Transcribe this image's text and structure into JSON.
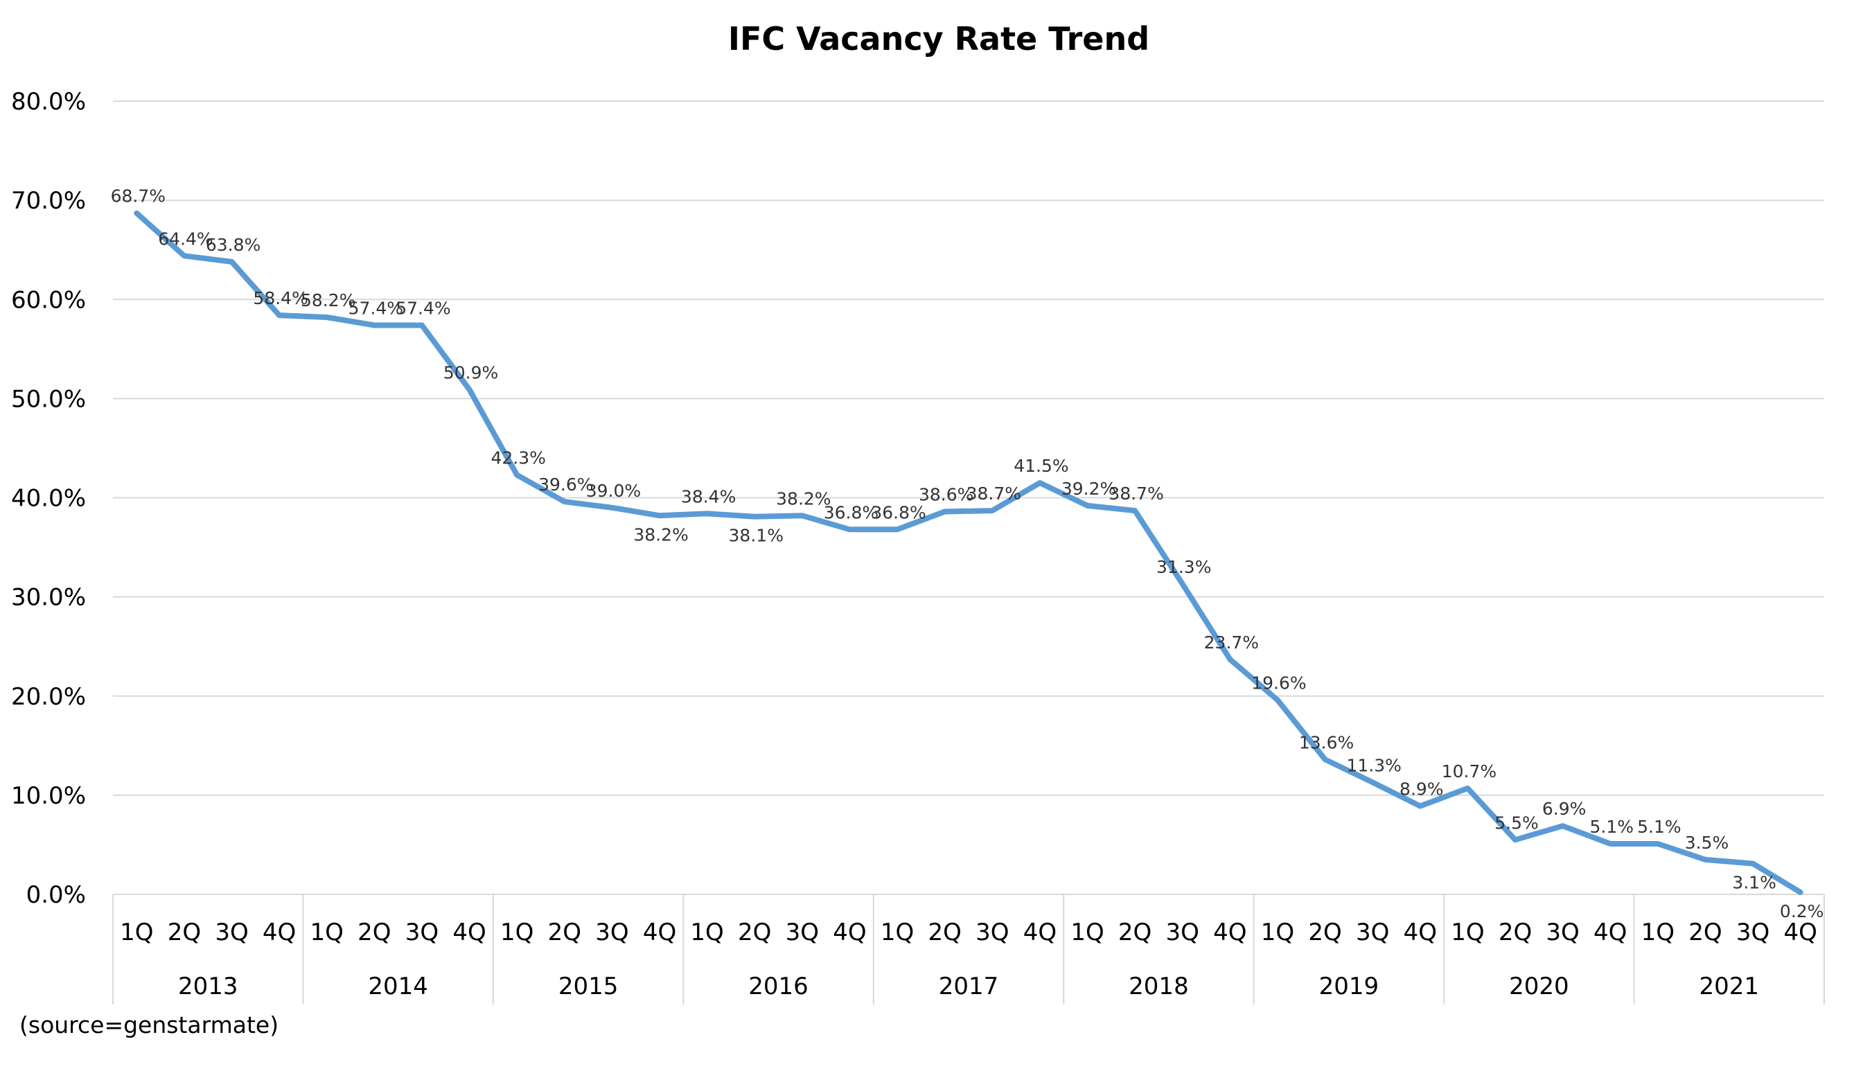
{
  "chart_data": {
    "type": "line",
    "title": "IFC Vacancy Rate Trend",
    "xlabel": "",
    "ylabel": "",
    "ylim": [
      0,
      80
    ],
    "yticks": [
      "0.0%",
      "10.0%",
      "20.0%",
      "30.0%",
      "40.0%",
      "50.0%",
      "60.0%",
      "70.0%",
      "80.0%"
    ],
    "quarters": [
      "1Q",
      "2Q",
      "3Q",
      "4Q"
    ],
    "years": [
      "2013",
      "2014",
      "2015",
      "2016",
      "2017",
      "2018",
      "2019",
      "2020",
      "2021"
    ],
    "series": [
      {
        "values": [
          68.7,
          64.4,
          63.8,
          58.4,
          58.2,
          57.4,
          57.4,
          50.9,
          42.3,
          39.6,
          39.0,
          38.2,
          38.4,
          38.1,
          38.2,
          36.8,
          36.8,
          38.6,
          38.7,
          41.5,
          39.2,
          38.7,
          31.3,
          23.7,
          19.6,
          13.6,
          11.3,
          8.9,
          10.7,
          5.5,
          6.9,
          5.1,
          5.1,
          3.5,
          3.1,
          0.2
        ],
        "labels": [
          "68.7%",
          "64.4%",
          "63.8%",
          "58.4%",
          "58.2%",
          "57.4%",
          "57.4%",
          "50.9%",
          "42.3%",
          "39.6%",
          "39.0%",
          "38.2%",
          "38.4%",
          "38.1%",
          "38.2%",
          "36.8%",
          "36.8%",
          "38.6%",
          "38.7%",
          "41.5%",
          "39.2%",
          "38.7%",
          "31.3%",
          "23.7%",
          "19.6%",
          "13.6%",
          "11.3%",
          "8.9%",
          "10.7%",
          "5.5%",
          "6.9%",
          "5.1%",
          "5.1%",
          "3.5%",
          "3.1%",
          "0.2%"
        ],
        "color": "#5b9bd5"
      }
    ],
    "grid": true,
    "legend": "none"
  },
  "source_note": "(source=genstarmate)"
}
